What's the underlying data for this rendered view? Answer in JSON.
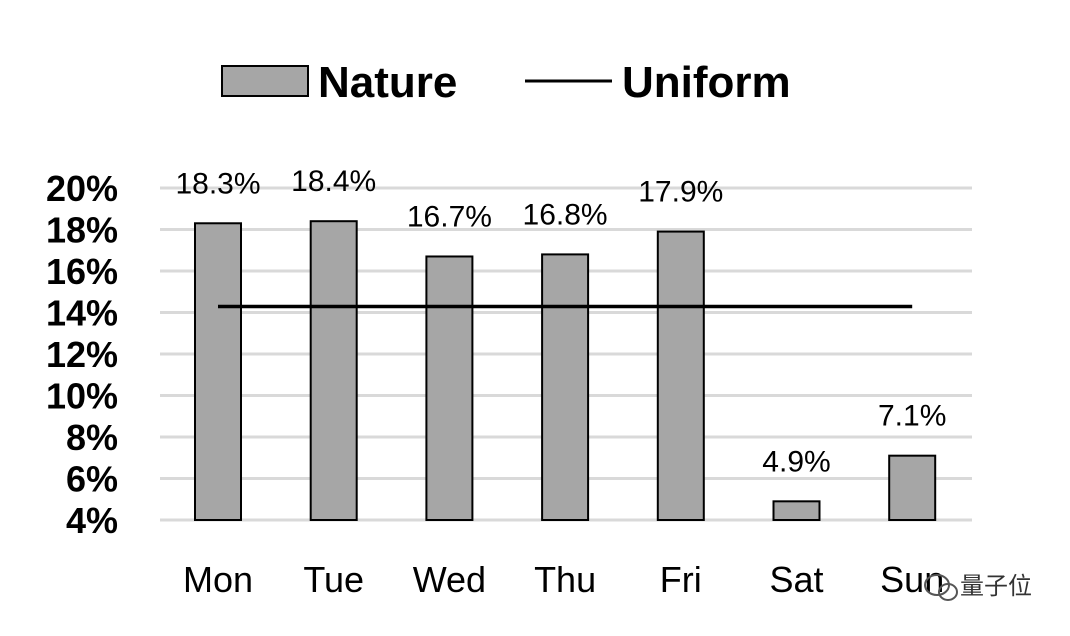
{
  "chart_data": {
    "type": "bar",
    "categories": [
      "Mon",
      "Tue",
      "Wed",
      "Thu",
      "Fri",
      "Sat",
      "Sun"
    ],
    "series": [
      {
        "name": "Nature",
        "type": "bar",
        "values": [
          18.3,
          18.4,
          16.7,
          16.8,
          17.9,
          4.9,
          7.1
        ],
        "data_labels": [
          "18.3%",
          "18.4%",
          "16.7%",
          "16.8%",
          "17.9%",
          "4.9%",
          "7.1%"
        ],
        "color": "#a6a6a6"
      },
      {
        "name": "Uniform",
        "type": "line",
        "values": [
          14.29,
          14.29,
          14.29,
          14.29,
          14.29,
          14.29,
          14.29
        ],
        "color": "#000000"
      }
    ],
    "y_ticks": [
      "20%",
      "18%",
      "16%",
      "14%",
      "12%",
      "10%",
      "8%",
      "6%",
      "4%"
    ],
    "y_tick_values": [
      20,
      18,
      16,
      14,
      12,
      10,
      8,
      6,
      4
    ],
    "ylim": [
      4,
      20
    ],
    "grid": true,
    "legend_position": "top"
  },
  "legend": {
    "nature_label": "Nature",
    "uniform_label": "Uniform"
  },
  "watermark": {
    "text": "量子位"
  },
  "colors": {
    "bar_fill": "#a6a6a6",
    "bar_stroke": "#000000",
    "gridline": "#d9d9d9",
    "line": "#000000"
  }
}
